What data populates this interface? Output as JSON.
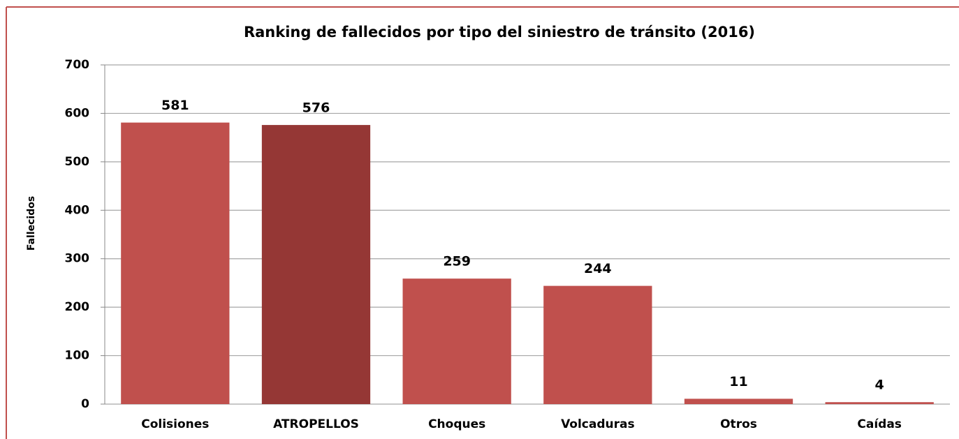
{
  "chart_data": {
    "type": "bar",
    "title": "Ranking de fallecidos por tipo del siniestro de tránsito (2016)",
    "y_label": "Fallecidos",
    "categories": [
      "Colisiones",
      "ATROPELLOS",
      "Choques",
      "Volcaduras",
      "Otros",
      "Caídas"
    ],
    "values": [
      581,
      576,
      259,
      244,
      11,
      4
    ],
    "colors": [
      "#c0504d",
      "#953735",
      "#c0504d",
      "#c0504d",
      "#c0504d",
      "#c0504d"
    ],
    "ylim": [
      0,
      700
    ],
    "yticks": [
      0,
      100,
      200,
      300,
      400,
      500,
      600,
      700
    ],
    "grid": true
  }
}
